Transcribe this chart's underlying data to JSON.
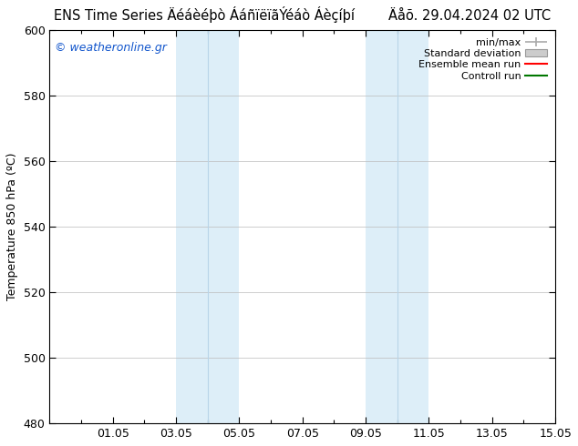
{
  "title": "ENS Time Series Äéáèéþò ÁáñïëïãÝéáò Áèçíþí        Äåõ. 29.04.2024 02 UTC",
  "ylabel": "Temperature 850 hPa (ºC)",
  "watermark": "© weatheronline.gr",
  "xlim_start": 0,
  "xlim_end": 16,
  "ylim_bottom": 480,
  "ylim_top": 600,
  "yticks": [
    480,
    500,
    520,
    540,
    560,
    580,
    600
  ],
  "xtick_positions": [
    2,
    4,
    6,
    8,
    10,
    12,
    14,
    16
  ],
  "xtick_labels": [
    "01.05",
    "03.05",
    "05.05",
    "07.05",
    "09.05",
    "11.05",
    "13.05",
    "15.05"
  ],
  "shade_bands": [
    {
      "xmin": 4.0,
      "xmax": 6.0
    },
    {
      "xmin": 10.0,
      "xmax": 12.0
    }
  ],
  "shade_dividers": [
    5.0,
    11.0
  ],
  "shade_color": "#ddeef8",
  "divider_color": "#b8d4e8",
  "background_color": "#ffffff",
  "plot_bg_color": "#ffffff",
  "grid_color": "#bbbbbb",
  "legend_items": [
    {
      "label": "min/max",
      "color": "#aaaaaa",
      "style": "errbar"
    },
    {
      "label": "Standard deviation",
      "color": "#cccccc",
      "style": "fill"
    },
    {
      "label": "Ensemble mean run",
      "color": "#ff0000",
      "style": "line"
    },
    {
      "label": "Controll run",
      "color": "#007700",
      "style": "line"
    }
  ],
  "title_fontsize": 10.5,
  "tick_fontsize": 9,
  "ylabel_fontsize": 9,
  "legend_fontsize": 8,
  "watermark_fontsize": 9,
  "watermark_color": "#1155cc"
}
